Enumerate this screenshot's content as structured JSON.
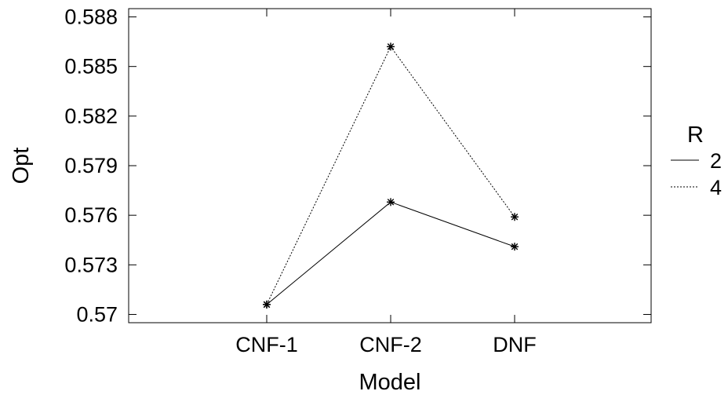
{
  "chart_data": {
    "type": "line",
    "title": "",
    "xlabel": "Model",
    "ylabel": "Opt",
    "categories": [
      "CNF-1",
      "CNF-2",
      "DNF"
    ],
    "ylim": [
      0.5695,
      0.5885
    ],
    "y_ticks": [
      0.57,
      0.573,
      0.576,
      0.579,
      0.582,
      0.585,
      0.588
    ],
    "y_tick_labels": [
      "0.57",
      "0.573",
      "0.576",
      "0.579",
      "0.582",
      "0.585",
      "0.588"
    ],
    "grid": false,
    "legend": {
      "title": "R",
      "position": "right"
    },
    "series": [
      {
        "name": "2",
        "values": [
          0.5706,
          0.5768,
          0.5741
        ],
        "line_style": "solid",
        "marker": "asterisk",
        "color": "#000000"
      },
      {
        "name": "4",
        "values": [
          0.5706,
          0.5862,
          0.5759
        ],
        "line_style": "dotted",
        "marker": "asterisk",
        "color": "#000000"
      }
    ]
  }
}
